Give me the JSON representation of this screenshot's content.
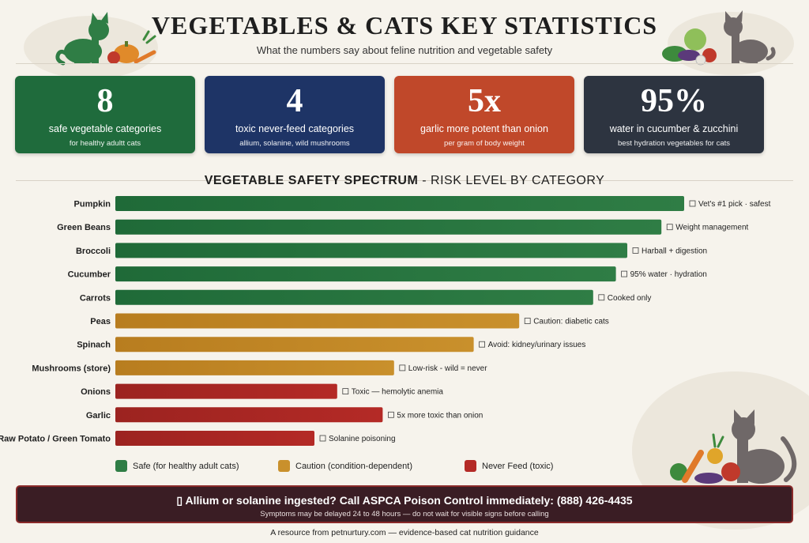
{
  "header": {
    "title": "VEGETABLES & CATS KEY STATISTICS",
    "subtitle": "What the numbers say about feline nutrition and vegetable safety"
  },
  "stats": [
    {
      "value": "8",
      "label": "safe vegetable categories",
      "sub": "for healthy adultt cats",
      "color": "#1f6b3c"
    },
    {
      "value": "4",
      "label": "toxic never-feed categories",
      "sub": "allium, solanine, wild mushrooms",
      "color": "#1e3466"
    },
    {
      "value": "5x",
      "label": "garlic more potent than onion",
      "sub": "per gram of body weight",
      "color": "#c0482a"
    },
    {
      "value": "95%",
      "label": "water in cucumber & zucchini",
      "sub": "best hydration vegetables for cats",
      "color": "#2d3440"
    }
  ],
  "section": {
    "title_bold": "VEGETABLE SAFETY SPECTRUM",
    "title_rest": " - RISK LEVEL BY CATEGORY"
  },
  "colors": {
    "safe": "#2f7d45",
    "caution": "#c9902c",
    "never": "#b42a26"
  },
  "chart_data": {
    "type": "bar",
    "orientation": "horizontal",
    "title": "VEGETABLE SAFETY SPECTRUM - RISK LEVEL BY CATEGORY",
    "xlim": [
      0,
      100
    ],
    "grid": false,
    "legend_position": "bottom",
    "legend": [
      {
        "key": "safe",
        "label": "Safe (for healthy adult cats)"
      },
      {
        "key": "caution",
        "label": "Caution (condition-dependent)"
      },
      {
        "key": "never",
        "label": "Never Feed (toxic)"
      }
    ],
    "categories": [
      "Pumpkin",
      "Green Beans",
      "Broccoli",
      "Cucumber",
      "Carrots",
      "Peas",
      "Spinach",
      "Mushrooms (store)",
      "Onions",
      "Garlic",
      "Raw Potato / Green Tomato"
    ],
    "values": [
      100,
      96,
      90,
      88,
      84,
      71,
      63,
      49,
      39,
      47,
      35
    ],
    "levels": [
      "safe",
      "safe",
      "safe",
      "safe",
      "safe",
      "caution",
      "caution",
      "caution",
      "never",
      "never",
      "never"
    ],
    "annotations": [
      "Vet's #1 pick · safest",
      "Weight management",
      "Harball + digestion",
      "95% water · hydration",
      "Cooked only",
      "Caution: diabetic cats",
      "Avoid: kidney/urinary issues",
      "Low-risk - wild = never",
      "Toxic — hemolytic anemia",
      "5x more toxic than onion",
      "Solanine poisoning"
    ]
  },
  "banner": {
    "main": "▯ Allium or solanine ingested? Call ASPCA Poison Control immediately: (888) 426-4435",
    "sub": "Symptoms may be delayed 24 to 48 hours — do not wait for visible signs before calling"
  },
  "footer": "A resource from petnurtury.com — evidence-based cat nutrition guidance",
  "icons": [
    "cat-silhouette-icon",
    "vegetable-basket-icon"
  ]
}
